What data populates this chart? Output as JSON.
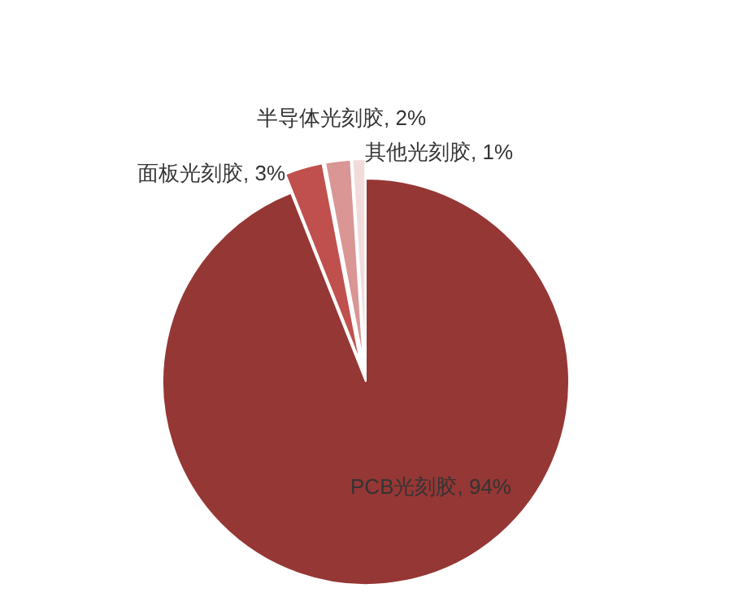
{
  "chart_data": {
    "type": "pie",
    "categories": [
      "PCB光刻胶",
      "面板光刻胶",
      "半导体光刻胶",
      "其他光刻胶"
    ],
    "values": [
      94,
      3,
      2,
      1
    ],
    "colors": [
      "#953735",
      "#c0504d",
      "#d99694",
      "#f2dcdb"
    ],
    "value_labels": [
      "94%",
      "3%",
      "2%",
      "1%"
    ]
  }
}
